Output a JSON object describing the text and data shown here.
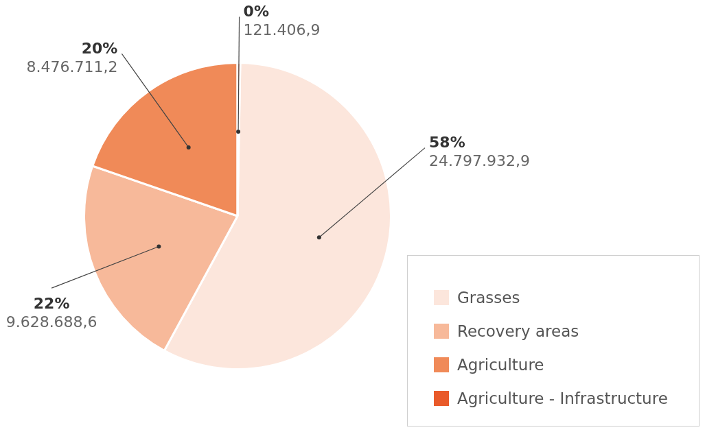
{
  "chart_data": {
    "type": "pie",
    "categories": [
      "Grasses",
      "Recovery areas",
      "Agriculture",
      "Agriculture - Infrastructure"
    ],
    "values": [
      24797932.9,
      9628688.6,
      8476711.2,
      121406.9
    ],
    "colors": [
      "#fce6dc",
      "#f7b99a",
      "#f08a58",
      "#e95a2a"
    ],
    "value_labels": [
      "58%\n24.797.932,9",
      "22%\n9.628.688,6",
      "20%\n8.476.711,2",
      "0%\n121.406,9"
    ],
    "legend": "bottom right"
  }
}
